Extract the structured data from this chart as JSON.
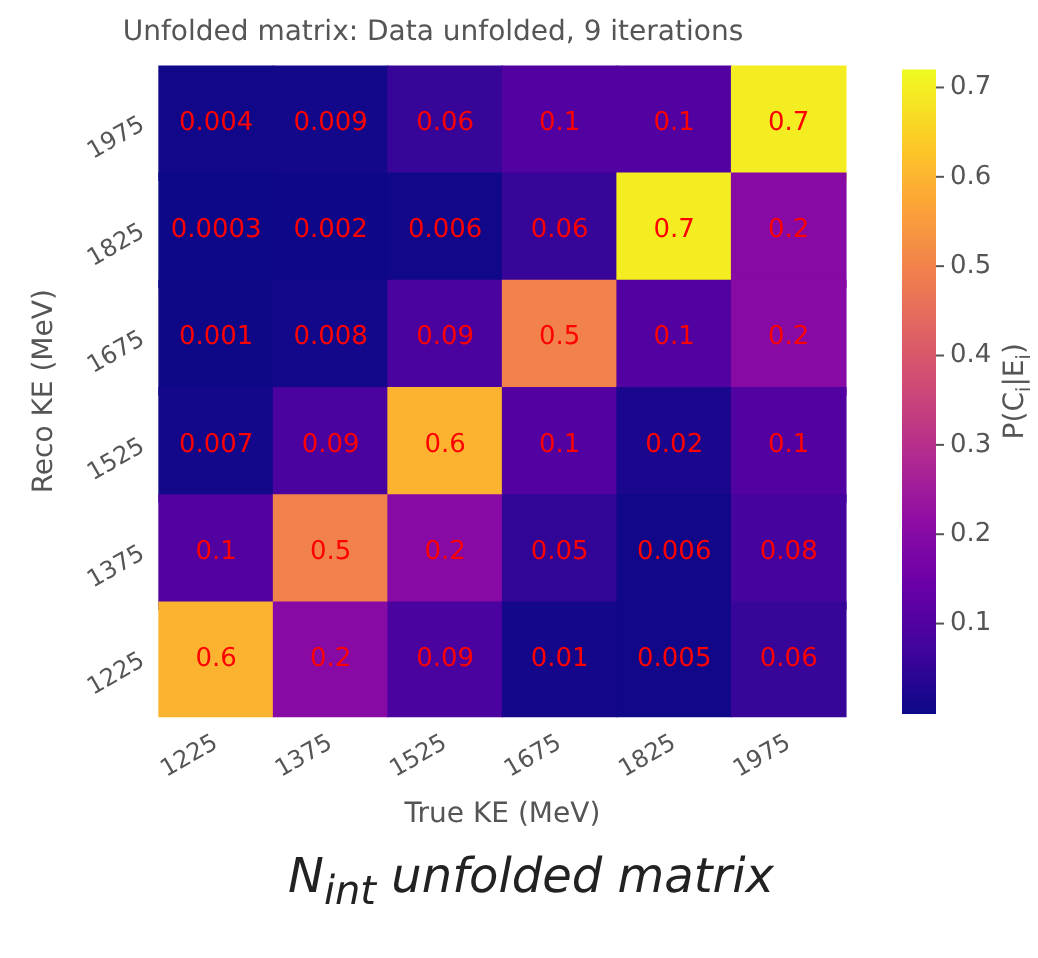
{
  "chart_data": {
    "type": "heatmap",
    "title": "Unfolded matrix: Data unfolded, 9 iterations",
    "xlabel": "True KE (MeV)",
    "ylabel": "Reco KE (MeV)",
    "clabel": "P(C$_{i}$|E$_{i}$)",
    "categories": [
      "1225",
      "1375",
      "1525",
      "1675",
      "1825",
      "1975"
    ],
    "y_categories": [
      "1975",
      "1825",
      "1675",
      "1525",
      "1375",
      "1225"
    ],
    "cells": [
      [
        0.004,
        0.009,
        0.06,
        0.1,
        0.1,
        0.7
      ],
      [
        0.0003,
        0.002,
        0.006,
        0.06,
        0.7,
        0.2
      ],
      [
        0.001,
        0.008,
        0.09,
        0.5,
        0.1,
        0.2
      ],
      [
        0.007,
        0.09,
        0.6,
        0.1,
        0.02,
        0.1
      ],
      [
        0.1,
        0.5,
        0.2,
        0.05,
        0.006,
        0.08
      ],
      [
        0.6,
        0.2,
        0.09,
        0.01,
        0.005,
        0.06
      ]
    ],
    "clim": [
      0,
      0.72
    ],
    "cticks": [
      0.1,
      0.2,
      0.3,
      0.4,
      0.5,
      0.6,
      0.7
    ],
    "data_labels": true,
    "grid": false,
    "annotations": [
      "N$_{int}$ unfolded matrix"
    ]
  }
}
